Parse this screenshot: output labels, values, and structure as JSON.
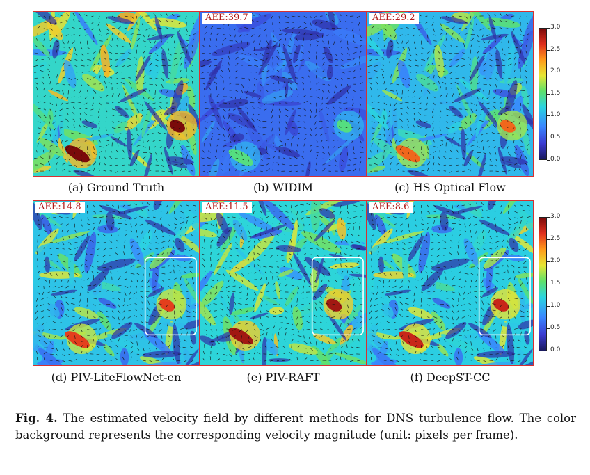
{
  "panels": [
    {
      "id": "a",
      "caption": "(a) Ground Truth",
      "aee": "",
      "highlight": false
    },
    {
      "id": "b",
      "caption": "(b) WIDIM",
      "aee": "AEE:39.7",
      "highlight": false
    },
    {
      "id": "c",
      "caption": "(c) HS Optical Flow",
      "aee": "AEE:29.2",
      "highlight": false
    },
    {
      "id": "d",
      "caption": "(d) PIV-LiteFlowNet-en",
      "aee": "AEE:14.8",
      "highlight": true
    },
    {
      "id": "e",
      "caption": "(e) PIV-RAFT",
      "aee": "AEE:11.5",
      "highlight": true
    },
    {
      "id": "f",
      "caption": "(f) DeepST-CC",
      "aee": "AEE:8.6",
      "highlight": true
    }
  ],
  "colorbar": {
    "min": 0.0,
    "max": 3.0,
    "ticks": [
      "0.0",
      "0.5",
      "1.0",
      "1.5",
      "2.0",
      "2.5",
      "3.0"
    ],
    "colors": [
      "#1a1a5e",
      "#3b3bd0",
      "#3a86ff",
      "#2ad4e0",
      "#5ee06b",
      "#e6e635",
      "#ff9a1a",
      "#e0301e",
      "#7a0a0a"
    ]
  },
  "figure_caption": {
    "label": "Fig. 4.",
    "text": "The estimated velocity field by different methods for DNS turbulence flow. The color background represents the corresponding velocity magnitude (unit: pixels per frame)."
  }
}
